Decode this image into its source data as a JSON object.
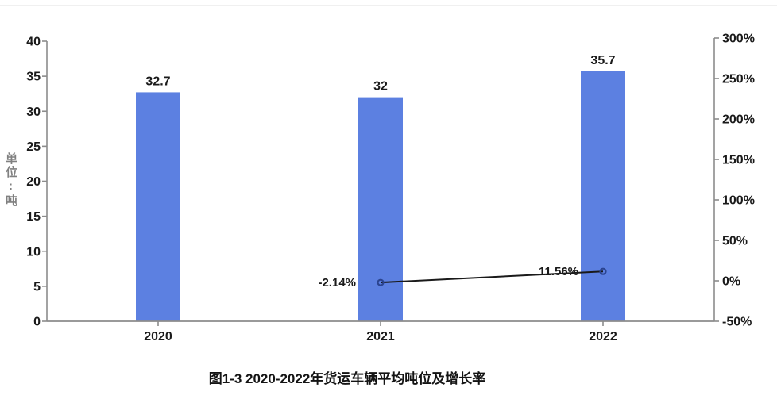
{
  "chart_data": {
    "type": "bar",
    "caption": "图1-3 2020-2022年货运车辆平均吨位及增长率",
    "categories": [
      "2020",
      "2021",
      "2022"
    ],
    "series": [
      {
        "type": "bar",
        "axis": "left",
        "values": [
          32.7,
          32,
          35.7
        ],
        "labels": [
          "32.7",
          "32",
          "35.7"
        ],
        "color": "#5C80E1"
      },
      {
        "type": "line",
        "axis": "right",
        "values": [
          null,
          -2.14,
          11.56
        ],
        "labels": [
          "",
          "-2.14%",
          "11.56%"
        ],
        "color": "#1a1a1a",
        "marker_color": "#2B4490"
      }
    ],
    "left_axis": {
      "unit_label": "单位:吨",
      "min": 0,
      "max": 40,
      "step": 5,
      "ticks": [
        "0",
        "5",
        "10",
        "15",
        "20",
        "25",
        "30",
        "35",
        "40"
      ]
    },
    "right_axis": {
      "min": -50,
      "max": 300,
      "step": 50,
      "ticks": [
        "-50%",
        "0%",
        "50%",
        "100%",
        "150%",
        "200%",
        "250%",
        "300%"
      ]
    },
    "grid": false,
    "legend": false
  },
  "colors": {
    "bar": "#5C80E1",
    "line": "#1a1a1a",
    "marker": "#2B4490",
    "axis": "#8c8c8c",
    "tick_text": "#1a1a1a",
    "unit_label_text": "#808080",
    "background": "#ffffff"
  }
}
